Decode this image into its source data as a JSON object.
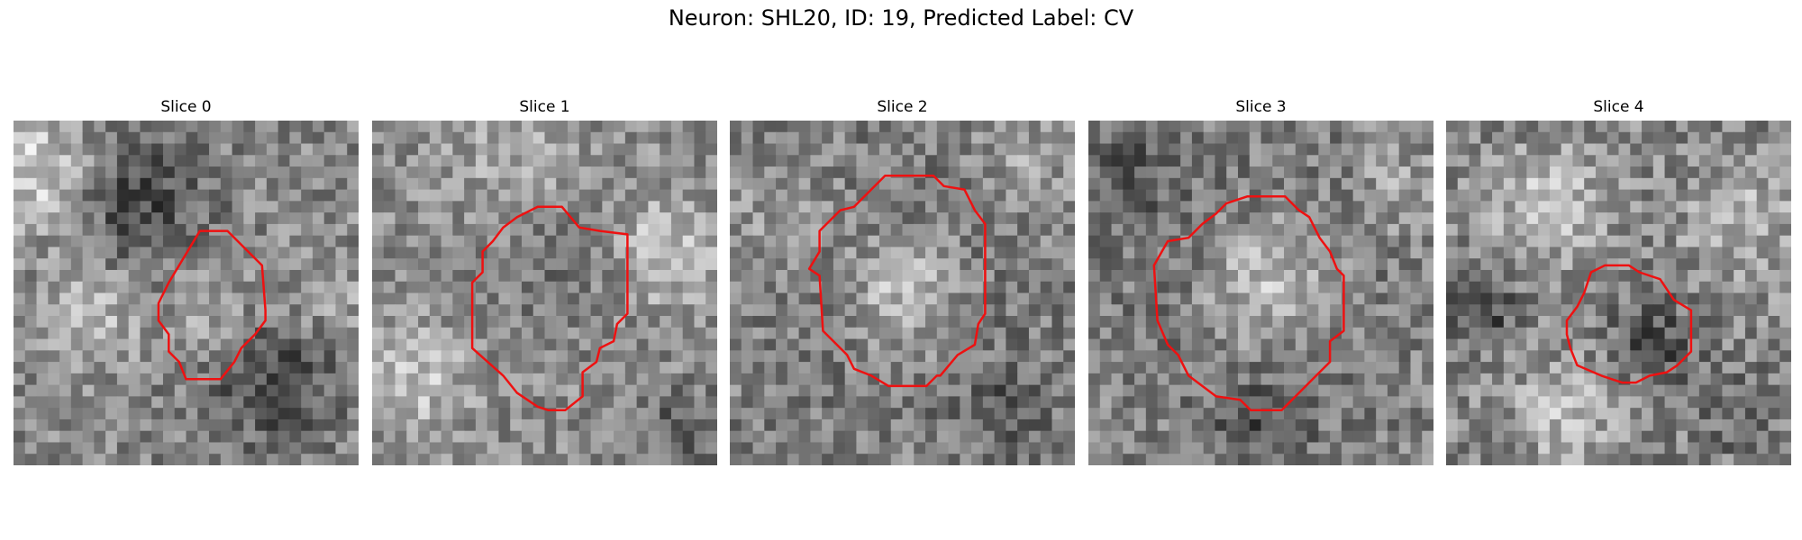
{
  "figure": {
    "title": "Neuron: SHL20, ID: 19, Predicted Label: CV"
  },
  "contour_color": "#ee1111",
  "panels": [
    {
      "title": "Slice 0",
      "seed": 11,
      "texture": {
        "base": 135,
        "spread": 95,
        "blobs": [
          [
            0.08,
            0.15,
            0.18,
            80
          ],
          [
            0.35,
            0.22,
            0.2,
            -70
          ],
          [
            0.75,
            0.75,
            0.2,
            -60
          ],
          [
            0.58,
            0.55,
            0.12,
            40
          ],
          [
            0.25,
            0.55,
            0.14,
            50
          ],
          [
            0.9,
            0.5,
            0.12,
            40
          ]
        ]
      },
      "contour": [
        [
          0.54,
          0.32
        ],
        [
          0.62,
          0.32
        ],
        [
          0.67,
          0.37
        ],
        [
          0.72,
          0.42
        ],
        [
          0.73,
          0.55
        ],
        [
          0.73,
          0.58
        ],
        [
          0.7,
          0.62
        ],
        [
          0.66,
          0.66
        ],
        [
          0.64,
          0.7
        ],
        [
          0.6,
          0.75
        ],
        [
          0.52,
          0.75
        ],
        [
          0.53,
          0.75
        ],
        [
          0.5,
          0.75
        ],
        [
          0.5,
          0.75
        ],
        [
          0.48,
          0.7
        ],
        [
          0.45,
          0.67
        ],
        [
          0.45,
          0.62
        ],
        [
          0.42,
          0.58
        ],
        [
          0.42,
          0.53
        ],
        [
          0.45,
          0.47
        ]
      ]
    },
    {
      "title": "Slice 1",
      "seed": 23,
      "texture": {
        "base": 140,
        "spread": 90,
        "blobs": [
          [
            0.85,
            0.38,
            0.15,
            60
          ],
          [
            0.12,
            0.75,
            0.15,
            55
          ],
          [
            0.55,
            0.45,
            0.18,
            -25
          ],
          [
            0.4,
            0.1,
            0.18,
            30
          ],
          [
            0.9,
            0.9,
            0.12,
            -50
          ]
        ]
      },
      "contour": [
        [
          0.42,
          0.28
        ],
        [
          0.48,
          0.25
        ],
        [
          0.55,
          0.25
        ],
        [
          0.6,
          0.31
        ],
        [
          0.66,
          0.32
        ],
        [
          0.74,
          0.33
        ],
        [
          0.74,
          0.56
        ],
        [
          0.71,
          0.59
        ],
        [
          0.7,
          0.64
        ],
        [
          0.66,
          0.66
        ],
        [
          0.65,
          0.7
        ],
        [
          0.61,
          0.73
        ],
        [
          0.61,
          0.8
        ],
        [
          0.56,
          0.84
        ],
        [
          0.51,
          0.84
        ],
        [
          0.48,
          0.83
        ],
        [
          0.42,
          0.79
        ],
        [
          0.38,
          0.74
        ],
        [
          0.29,
          0.66
        ],
        [
          0.29,
          0.47
        ],
        [
          0.32,
          0.44
        ],
        [
          0.32,
          0.38
        ],
        [
          0.35,
          0.35
        ],
        [
          0.38,
          0.31
        ]
      ]
    },
    {
      "title": "Slice 2",
      "seed": 37,
      "texture": {
        "base": 130,
        "spread": 95,
        "blobs": [
          [
            0.5,
            0.5,
            0.18,
            85
          ],
          [
            0.5,
            0.5,
            0.3,
            -30
          ],
          [
            0.8,
            0.85,
            0.14,
            -40
          ],
          [
            0.15,
            0.25,
            0.14,
            30
          ],
          [
            0.85,
            0.15,
            0.14,
            30
          ]
        ]
      },
      "contour": [
        [
          0.4,
          0.21
        ],
        [
          0.45,
          0.16
        ],
        [
          0.59,
          0.16
        ],
        [
          0.62,
          0.19
        ],
        [
          0.68,
          0.2
        ],
        [
          0.71,
          0.26
        ],
        [
          0.74,
          0.3
        ],
        [
          0.74,
          0.56
        ],
        [
          0.72,
          0.59
        ],
        [
          0.71,
          0.65
        ],
        [
          0.66,
          0.68
        ],
        [
          0.61,
          0.74
        ],
        [
          0.6,
          0.74
        ],
        [
          0.57,
          0.77
        ],
        [
          0.46,
          0.77
        ],
        [
          0.41,
          0.74
        ],
        [
          0.36,
          0.72
        ],
        [
          0.34,
          0.68
        ],
        [
          0.27,
          0.61
        ],
        [
          0.26,
          0.45
        ],
        [
          0.23,
          0.43
        ],
        [
          0.26,
          0.38
        ],
        [
          0.26,
          0.32
        ],
        [
          0.32,
          0.26
        ],
        [
          0.36,
          0.25
        ]
      ]
    },
    {
      "title": "Slice 3",
      "seed": 51,
      "texture": {
        "base": 130,
        "spread": 95,
        "blobs": [
          [
            0.52,
            0.48,
            0.2,
            85
          ],
          [
            0.5,
            0.5,
            0.34,
            -30
          ],
          [
            0.1,
            0.15,
            0.15,
            -40
          ],
          [
            0.9,
            0.2,
            0.12,
            40
          ],
          [
            0.5,
            0.9,
            0.15,
            -40
          ]
        ]
      },
      "contour": [
        [
          0.37,
          0.27
        ],
        [
          0.4,
          0.24
        ],
        [
          0.46,
          0.22
        ],
        [
          0.57,
          0.22
        ],
        [
          0.61,
          0.26
        ],
        [
          0.64,
          0.28
        ],
        [
          0.67,
          0.34
        ],
        [
          0.7,
          0.38
        ],
        [
          0.72,
          0.43
        ],
        [
          0.74,
          0.45
        ],
        [
          0.74,
          0.61
        ],
        [
          0.7,
          0.64
        ],
        [
          0.7,
          0.7
        ],
        [
          0.66,
          0.74
        ],
        [
          0.62,
          0.78
        ],
        [
          0.59,
          0.81
        ],
        [
          0.56,
          0.84
        ],
        [
          0.47,
          0.84
        ],
        [
          0.44,
          0.81
        ],
        [
          0.37,
          0.8
        ],
        [
          0.29,
          0.74
        ],
        [
          0.26,
          0.68
        ],
        [
          0.23,
          0.65
        ],
        [
          0.2,
          0.58
        ],
        [
          0.19,
          0.42
        ],
        [
          0.23,
          0.35
        ],
        [
          0.29,
          0.34
        ],
        [
          0.33,
          0.3
        ]
      ]
    },
    {
      "title": "Slice 4",
      "seed": 67,
      "texture": {
        "base": 135,
        "spread": 100,
        "blobs": [
          [
            0.3,
            0.25,
            0.16,
            60
          ],
          [
            0.1,
            0.55,
            0.1,
            -70
          ],
          [
            0.6,
            0.65,
            0.12,
            -65
          ],
          [
            0.85,
            0.3,
            0.15,
            50
          ],
          [
            0.35,
            0.85,
            0.15,
            50
          ],
          [
            0.85,
            0.85,
            0.12,
            -40
          ]
        ]
      },
      "contour": [
        [
          0.42,
          0.44
        ],
        [
          0.46,
          0.42
        ],
        [
          0.49,
          0.42
        ],
        [
          0.53,
          0.42
        ],
        [
          0.56,
          0.44
        ],
        [
          0.62,
          0.46
        ],
        [
          0.66,
          0.52
        ],
        [
          0.71,
          0.55
        ],
        [
          0.71,
          0.67
        ],
        [
          0.67,
          0.71
        ],
        [
          0.64,
          0.73
        ],
        [
          0.59,
          0.74
        ],
        [
          0.55,
          0.76
        ],
        [
          0.51,
          0.76
        ],
        [
          0.45,
          0.74
        ],
        [
          0.38,
          0.71
        ],
        [
          0.36,
          0.66
        ],
        [
          0.35,
          0.62
        ],
        [
          0.35,
          0.58
        ],
        [
          0.38,
          0.54
        ],
        [
          0.4,
          0.5
        ]
      ]
    }
  ]
}
